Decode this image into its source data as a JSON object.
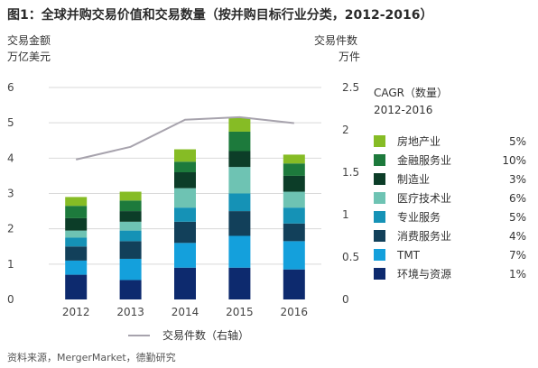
{
  "chart_data": {
    "type": "bar",
    "stacked": true,
    "title": "图1：全球并购交易价值和交易数量（按并购目标行业分类，2012-2016）",
    "y_left_label_lines": [
      "交易金额",
      "万亿美元"
    ],
    "y_right_label_lines": [
      "交易件数",
      "万件"
    ],
    "ylim_left": [
      0,
      6
    ],
    "ylim_right": [
      0,
      2.5
    ],
    "yticks_left": [
      "0",
      "1",
      "2",
      "3",
      "4",
      "5",
      "6"
    ],
    "yticks_right": [
      "0",
      "0.5",
      "1",
      "1.5",
      "2",
      "2.5"
    ],
    "categories": [
      "2012",
      "2013",
      "2014",
      "2015",
      "2016"
    ],
    "series": [
      {
        "name": "环境与资源",
        "cagr": "1%",
        "color": "#0d2a6e",
        "values": [
          0.7,
          0.55,
          0.9,
          0.9,
          0.85
        ]
      },
      {
        "name": "TMT",
        "cagr": "7%",
        "color": "#14a0dc",
        "values": [
          0.4,
          0.6,
          0.7,
          0.9,
          0.8
        ]
      },
      {
        "name": "消费服务业",
        "cagr": "4%",
        "color": "#12405a",
        "values": [
          0.4,
          0.5,
          0.6,
          0.7,
          0.5
        ]
      },
      {
        "name": "专业服务",
        "cagr": "5%",
        "color": "#1592b6",
        "values": [
          0.25,
          0.3,
          0.4,
          0.5,
          0.45
        ]
      },
      {
        "name": "医疗技术业",
        "cagr": "6%",
        "color": "#6ec3b3",
        "values": [
          0.2,
          0.25,
          0.55,
          0.75,
          0.45
        ]
      },
      {
        "name": "制造业",
        "cagr": "3%",
        "color": "#0c3d28",
        "values": [
          0.35,
          0.3,
          0.45,
          0.45,
          0.45
        ]
      },
      {
        "name": "金融服务业",
        "cagr": "10%",
        "color": "#1d7a3c",
        "values": [
          0.35,
          0.3,
          0.3,
          0.55,
          0.35
        ]
      },
      {
        "name": "房地产业",
        "cagr": "5%",
        "color": "#86bc25",
        "values": [
          0.25,
          0.25,
          0.35,
          0.4,
          0.25
        ]
      }
    ],
    "line_series": {
      "name": "交易件数（右轴）",
      "axis": "right",
      "color": "#a7a3ad",
      "values": [
        1.65,
        1.8,
        2.12,
        2.15,
        2.08
      ]
    },
    "legend_header_lines": [
      "CAGR（数量）",
      "2012-2016"
    ],
    "source_note": "资料来源，MergerMarket，德勤研究"
  }
}
